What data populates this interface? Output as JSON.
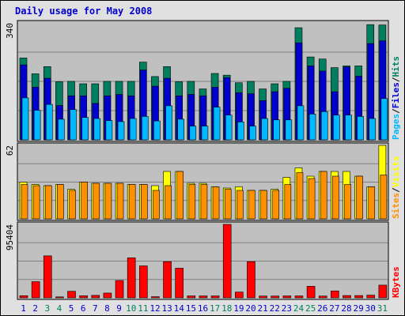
{
  "title": "Daily usage for May 2008",
  "colors": {
    "hits": "#007f5f",
    "files": "#0000d0",
    "pages": "#00b8ff",
    "visits": "#ffff00",
    "sites": "#ff9000",
    "kbytes": "#ff0000",
    "weekend_day": "#007f5f",
    "weekday": "#0000cc",
    "panel_bg": "#c0c0c0"
  },
  "chart_data": [
    {
      "type": "bar",
      "panel": "hits-files-pages",
      "x": [
        1,
        2,
        3,
        4,
        5,
        6,
        7,
        8,
        9,
        10,
        11,
        12,
        13,
        14,
        15,
        16,
        17,
        18,
        19,
        20,
        21,
        22,
        23,
        24,
        25,
        26,
        27,
        28,
        29,
        30,
        31
      ],
      "ylim": [
        0,
        340
      ],
      "ymax_label": "340",
      "axis_label": [
        "Pages",
        "Files",
        "Hits"
      ],
      "grid": true,
      "series": [
        {
          "name": "Hits",
          "values": [
            238,
            192,
            213,
            169,
            170,
            163,
            163,
            170,
            170,
            170,
            226,
            184,
            213,
            169,
            170,
            148,
            193,
            188,
            166,
            170,
            148,
            163,
            170,
            326,
            241,
            235,
            210,
            215,
            215,
            335,
            334
          ]
        },
        {
          "name": "Files",
          "values": [
            218,
            153,
            179,
            100,
            128,
            128,
            106,
            128,
            132,
            128,
            203,
            156,
            179,
            128,
            132,
            128,
            153,
            181,
            137,
            134,
            114,
            140,
            150,
            282,
            215,
            200,
            140,
            212,
            185,
            280,
            288
          ]
        },
        {
          "name": "Pages",
          "values": [
            122,
            86,
            103,
            60,
            88,
            65,
            62,
            56,
            53,
            62,
            68,
            55,
            99,
            60,
            40,
            40,
            95,
            72,
            52,
            40,
            62,
            58,
            58,
            99,
            75,
            82,
            72,
            72,
            68,
            62,
            120
          ]
        }
      ]
    },
    {
      "type": "bar",
      "panel": "visits-sites",
      "x": [
        1,
        2,
        3,
        4,
        5,
        6,
        7,
        8,
        9,
        10,
        11,
        12,
        13,
        14,
        15,
        16,
        17,
        18,
        19,
        20,
        21,
        22,
        23,
        24,
        25,
        26,
        27,
        28,
        29,
        30,
        31
      ],
      "ylim": [
        0,
        62
      ],
      "ymax_label": "62",
      "axis_label": [
        "Sites",
        "Visits"
      ],
      "grid": true,
      "series": [
        {
          "name": "Visits",
          "values": [
            31,
            29,
            28,
            29,
            25,
            31,
            30,
            30,
            30,
            29,
            29,
            28,
            40,
            40,
            30,
            30,
            27,
            26,
            27,
            24,
            24,
            25,
            35,
            43,
            36,
            40,
            40,
            40,
            36,
            27,
            62
          ]
        },
        {
          "name": "Sites",
          "values": [
            29,
            28,
            28,
            29,
            24,
            31,
            30,
            30,
            30,
            29,
            29,
            24,
            28,
            40,
            29,
            29,
            27,
            25,
            24,
            24,
            24,
            24,
            29,
            39,
            34,
            40,
            36,
            29,
            36,
            27,
            37
          ]
        }
      ]
    },
    {
      "type": "bar",
      "panel": "kbytes",
      "x": [
        1,
        2,
        3,
        4,
        5,
        6,
        7,
        8,
        9,
        10,
        11,
        12,
        13,
        14,
        15,
        16,
        17,
        18,
        19,
        20,
        21,
        22,
        23,
        24,
        25,
        26,
        27,
        28,
        29,
        30,
        31
      ],
      "ylim": [
        0,
        95404
      ],
      "ymax_label": "95404",
      "axis_label": [
        "KBytes"
      ],
      "grid": true,
      "series": [
        {
          "name": "KBytes",
          "values": [
            2800,
            21000,
            54500,
            1200,
            8500,
            2700,
            3200,
            6200,
            22500,
            52000,
            41500,
            1500,
            47000,
            38500,
            2500,
            2500,
            2500,
            95404,
            7500,
            47000,
            2300,
            2300,
            2500,
            2500,
            15000,
            2300,
            9000,
            3000,
            3000,
            3500,
            16500
          ]
        }
      ]
    }
  ],
  "x_axis": {
    "labels": [
      "1",
      "2",
      "3",
      "4",
      "5",
      "6",
      "7",
      "8",
      "9",
      "10",
      "11",
      "12",
      "13",
      "14",
      "15",
      "16",
      "17",
      "18",
      "19",
      "20",
      "21",
      "22",
      "23",
      "24",
      "25",
      "26",
      "27",
      "28",
      "29",
      "30",
      "31"
    ],
    "weekend_days": [
      3,
      4,
      10,
      11,
      17,
      18,
      24,
      25,
      31
    ]
  }
}
